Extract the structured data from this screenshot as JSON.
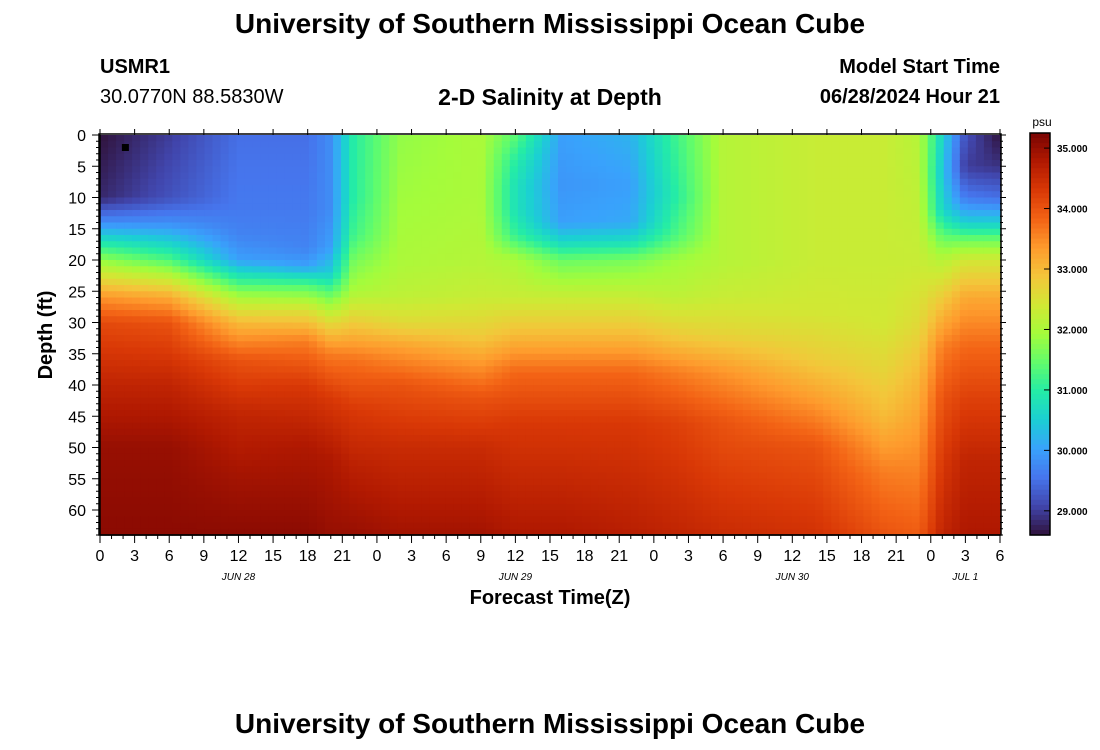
{
  "header": {
    "title": "University of Southern Mississippi Ocean Cube",
    "station": "USMR1",
    "coords": "30.0770N  88.5830W",
    "plot_title": "2-D Salinity at Depth",
    "model_label": "Model Start Time",
    "model_time": "06/28/2024 Hour 21"
  },
  "footer": {
    "title": "University of Southern Mississippi Ocean Cube"
  },
  "chart_data": {
    "type": "heatmap",
    "title": "2-D Salinity at Depth",
    "xlabel": "Forecast Time(Z)",
    "ylabel": "Depth (ft)",
    "x_range_hours": [
      0,
      78
    ],
    "x_tick_labels": [
      "0",
      "3",
      "6",
      "9",
      "12",
      "15",
      "18",
      "21",
      "0",
      "3",
      "6",
      "9",
      "12",
      "15",
      "18",
      "21",
      "0",
      "3",
      "6",
      "9",
      "12",
      "15",
      "18",
      "21",
      "0",
      "3",
      "6"
    ],
    "date_labels": [
      {
        "label": "JUN 28",
        "hour": 12
      },
      {
        "label": "JUN 29",
        "hour": 36
      },
      {
        "label": "JUN 30",
        "hour": 60
      },
      {
        "label": "JUL 1",
        "hour": 75
      }
    ],
    "ylim": [
      0,
      64
    ],
    "y_tick_labels": [
      "0",
      "5",
      "10",
      "15",
      "20",
      "25",
      "30",
      "35",
      "40",
      "45",
      "50",
      "55",
      "60"
    ],
    "colorbar": {
      "unit": "psu",
      "min": 28.6,
      "max": 35.25,
      "tick_labels": [
        "35.000",
        "34.000",
        "33.000",
        "32.000",
        "31.000",
        "30.000",
        "29.000"
      ],
      "colors": [
        "#30123b",
        "#4145ab",
        "#4675ed",
        "#39a2fc",
        "#1bcfd4",
        "#24eca6",
        "#61fc6c",
        "#a4fc3b",
        "#d1e834",
        "#f3c63a",
        "#fe9b2d",
        "#f36315",
        "#d93806",
        "#b11901",
        "#7a0403"
      ]
    },
    "marker": {
      "hour": 2.2,
      "depth": 2
    },
    "grid": false,
    "salinity_profiles": [
      {
        "hour": 0,
        "depths": [
          0,
          10,
          14,
          17,
          20,
          23,
          26,
          30,
          40,
          50,
          64
        ],
        "values": [
          28.6,
          28.8,
          29.8,
          30.8,
          31.8,
          32.6,
          33.4,
          34.1,
          34.6,
          35.0,
          35.1
        ]
      },
      {
        "hour": 6,
        "depths": [
          0,
          10,
          14,
          17,
          20,
          23,
          26,
          30,
          40,
          50,
          64
        ],
        "values": [
          29.0,
          29.2,
          29.8,
          30.5,
          31.3,
          32.3,
          33.2,
          34.0,
          34.6,
          35.0,
          35.1
        ]
      },
      {
        "hour": 12,
        "depths": [
          0,
          12,
          16,
          20,
          23,
          26,
          30,
          36,
          45,
          55,
          64
        ],
        "values": [
          29.5,
          29.6,
          29.7,
          30.0,
          31.0,
          32.0,
          33.0,
          34.0,
          34.6,
          34.9,
          35.1
        ]
      },
      {
        "hour": 18,
        "depths": [
          0,
          12,
          18,
          21,
          24,
          28,
          33,
          40,
          50,
          64
        ],
        "values": [
          29.5,
          29.6,
          29.7,
          30.0,
          31.3,
          32.5,
          33.6,
          34.3,
          34.8,
          35.1
        ]
      },
      {
        "hour": 20,
        "depths": [
          0,
          12,
          18,
          22,
          26,
          30,
          35,
          42,
          52,
          64
        ],
        "values": [
          29.8,
          29.8,
          30.0,
          30.5,
          31.6,
          32.6,
          33.6,
          34.3,
          34.8,
          35.0
        ]
      },
      {
        "hour": 22,
        "depths": [
          0,
          10,
          16,
          20,
          25,
          30,
          36,
          44,
          54,
          64
        ],
        "values": [
          31.0,
          31.0,
          31.2,
          31.6,
          32.0,
          32.8,
          33.7,
          34.3,
          34.7,
          35.0
        ]
      },
      {
        "hour": 26,
        "depths": [
          0,
          10,
          20,
          26,
          30,
          34,
          40,
          50,
          64
        ],
        "values": [
          31.8,
          31.9,
          32.0,
          32.2,
          32.6,
          33.3,
          34.0,
          34.5,
          34.9
        ]
      },
      {
        "hour": 33,
        "depths": [
          0,
          10,
          20,
          26,
          32,
          36,
          42,
          50,
          64
        ],
        "values": [
          32.0,
          32.0,
          32.1,
          32.3,
          32.8,
          33.3,
          34.0,
          34.5,
          34.9
        ]
      },
      {
        "hour": 36,
        "depths": [
          0,
          4,
          8,
          12,
          16,
          20,
          26,
          32,
          38,
          46,
          64
        ],
        "values": [
          31.4,
          31.0,
          30.8,
          30.8,
          31.1,
          32.0,
          32.3,
          33.0,
          33.8,
          34.3,
          34.8
        ]
      },
      {
        "hour": 40,
        "depths": [
          0,
          8,
          14,
          17,
          20,
          26,
          32,
          38,
          46,
          64
        ],
        "values": [
          30.0,
          29.9,
          30.0,
          30.6,
          31.5,
          32.3,
          33.0,
          33.8,
          34.3,
          34.8
        ]
      },
      {
        "hour": 46,
        "depths": [
          0,
          8,
          14,
          17,
          20,
          26,
          32,
          38,
          46,
          64
        ],
        "values": [
          30.2,
          30.0,
          30.1,
          30.7,
          31.6,
          32.3,
          33.0,
          33.8,
          34.3,
          34.7
        ]
      },
      {
        "hour": 50,
        "depths": [
          0,
          10,
          16,
          20,
          26,
          32,
          38,
          46,
          64
        ],
        "values": [
          31.2,
          31.0,
          31.3,
          31.9,
          32.2,
          32.8,
          33.6,
          34.2,
          34.6
        ]
      },
      {
        "hour": 54,
        "depths": [
          0,
          10,
          20,
          26,
          32,
          38,
          46,
          64
        ],
        "values": [
          32.1,
          32.1,
          32.1,
          32.3,
          32.7,
          33.4,
          34.0,
          34.5
        ]
      },
      {
        "hour": 62,
        "depths": [
          0,
          10,
          20,
          28,
          36,
          42,
          50,
          64
        ],
        "values": [
          32.3,
          32.3,
          32.3,
          32.4,
          32.8,
          33.3,
          34.0,
          34.4
        ]
      },
      {
        "hour": 68,
        "depths": [
          0,
          10,
          20,
          30,
          38,
          45,
          54,
          64
        ],
        "values": [
          32.3,
          32.3,
          32.3,
          32.4,
          32.7,
          33.0,
          33.6,
          34.0
        ]
      },
      {
        "hour": 71,
        "depths": [
          0,
          10,
          20,
          30,
          38,
          46,
          55,
          64
        ],
        "values": [
          32.1,
          32.2,
          32.3,
          32.6,
          33.0,
          33.3,
          33.6,
          33.9
        ]
      },
      {
        "hour": 73,
        "depths": [
          0,
          6,
          12,
          16,
          20,
          26,
          34,
          42,
          52,
          64
        ],
        "values": [
          30.6,
          30.4,
          30.6,
          31.4,
          32.1,
          32.8,
          33.6,
          34.0,
          34.3,
          34.6
        ]
      },
      {
        "hour": 75,
        "depths": [
          0,
          5,
          10,
          14,
          17,
          20,
          26,
          34,
          42,
          52,
          64
        ],
        "values": [
          29.2,
          29.0,
          29.6,
          30.5,
          31.6,
          32.4,
          33.2,
          33.8,
          34.2,
          34.6,
          34.8
        ]
      },
      {
        "hour": 78,
        "depths": [
          0,
          5,
          10,
          14,
          17,
          20,
          26,
          34,
          42,
          52,
          64
        ],
        "values": [
          28.6,
          28.9,
          29.5,
          30.5,
          31.6,
          32.4,
          33.2,
          33.8,
          34.2,
          34.6,
          34.8
        ]
      }
    ]
  }
}
